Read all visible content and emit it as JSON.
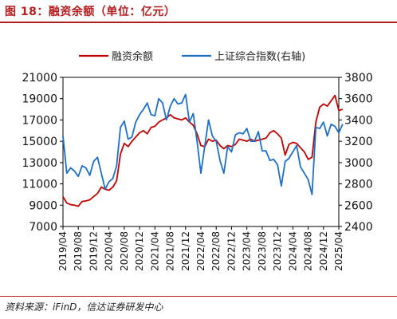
{
  "header": {
    "title": "图 18：融资余额（单位：亿元）"
  },
  "footer": {
    "source": "资料来源：iFinD，信达证券研发中心"
  },
  "colors": {
    "accent": "#b31d1d",
    "series_margin": "#c00000",
    "series_index": "#1f6fc5"
  },
  "chart_data": {
    "type": "line",
    "legend_position": "top",
    "grid": false,
    "x_ticks": [
      "2019/04",
      "2019/08",
      "2019/12",
      "2020/04",
      "2020/08",
      "2020/12",
      "2021/04",
      "2021/08",
      "2021/12",
      "2022/04",
      "2022/08",
      "2022/12",
      "2023/04",
      "2023/08",
      "2023/12",
      "2024/04",
      "2024/08",
      "2024/12",
      "2025/04"
    ],
    "left_axis": {
      "ylim": [
        7000,
        21000
      ],
      "ticks": [
        "7000",
        "9000",
        "11000",
        "13000",
        "15000",
        "17000",
        "19000",
        "21000"
      ]
    },
    "right_axis": {
      "ylim": [
        2400,
        3800
      ],
      "ticks": [
        "2400",
        "2600",
        "2800",
        "3000",
        "3200",
        "3400",
        "3600",
        "3800"
      ]
    },
    "series": [
      {
        "name": "融资余额",
        "axis": "left",
        "points": [
          [
            "2019/04",
            9800
          ],
          [
            "2019/05",
            9200
          ],
          [
            "2019/06",
            9050
          ],
          [
            "2019/07",
            9000
          ],
          [
            "2019/08",
            8900
          ],
          [
            "2019/09",
            9350
          ],
          [
            "2019/10",
            9400
          ],
          [
            "2019/11",
            9500
          ],
          [
            "2019/12",
            9800
          ],
          [
            "2020/01",
            10100
          ],
          [
            "2020/02",
            10700
          ],
          [
            "2020/03",
            10500
          ],
          [
            "2020/04",
            10400
          ],
          [
            "2020/05",
            10700
          ],
          [
            "2020/06",
            11300
          ],
          [
            "2020/07",
            13800
          ],
          [
            "2020/08",
            14800
          ],
          [
            "2020/09",
            14500
          ],
          [
            "2020/10",
            15000
          ],
          [
            "2020/11",
            15400
          ],
          [
            "2020/12",
            15800
          ],
          [
            "2021/01",
            16000
          ],
          [
            "2021/02",
            15700
          ],
          [
            "2021/03",
            16300
          ],
          [
            "2021/04",
            16400
          ],
          [
            "2021/05",
            16800
          ],
          [
            "2021/06",
            17000
          ],
          [
            "2021/07",
            17200
          ],
          [
            "2021/08",
            17500
          ],
          [
            "2021/09",
            17200
          ],
          [
            "2021/10",
            17100
          ],
          [
            "2021/11",
            17000
          ],
          [
            "2021/12",
            17200
          ],
          [
            "2022/01",
            16800
          ],
          [
            "2022/02",
            16500
          ],
          [
            "2022/03",
            15700
          ],
          [
            "2022/04",
            14600
          ],
          [
            "2022/05",
            14500
          ],
          [
            "2022/06",
            15200
          ],
          [
            "2022/07",
            15000
          ],
          [
            "2022/08",
            15100
          ],
          [
            "2022/09",
            14600
          ],
          [
            "2022/10",
            14300
          ],
          [
            "2022/11",
            14600
          ],
          [
            "2022/12",
            14500
          ],
          [
            "2023/01",
            14700
          ],
          [
            "2023/02",
            15200
          ],
          [
            "2023/03",
            15100
          ],
          [
            "2023/04",
            15000
          ],
          [
            "2023/05",
            15200
          ],
          [
            "2023/06",
            15000
          ],
          [
            "2023/07",
            15100
          ],
          [
            "2023/08",
            15200
          ],
          [
            "2023/09",
            15300
          ],
          [
            "2023/10",
            15800
          ],
          [
            "2023/11",
            16000
          ],
          [
            "2023/12",
            15700
          ],
          [
            "2024/01",
            15300
          ],
          [
            "2024/02",
            13700
          ],
          [
            "2024/03",
            14700
          ],
          [
            "2024/04",
            14900
          ],
          [
            "2024/05",
            14800
          ],
          [
            "2024/06",
            14400
          ],
          [
            "2024/07",
            14000
          ],
          [
            "2024/08",
            13300
          ],
          [
            "2024/09",
            13500
          ],
          [
            "2024/10",
            16800
          ],
          [
            "2024/11",
            18200
          ],
          [
            "2024/12",
            18500
          ],
          [
            "2025/01",
            18300
          ],
          [
            "2025/02",
            18800
          ],
          [
            "2025/03",
            19300
          ],
          [
            "2025/04",
            17900
          ],
          [
            "2025/05",
            18000
          ]
        ]
      },
      {
        "name": "上证综合指数(右轴)",
        "axis": "right",
        "points": [
          [
            "2019/04",
            3250
          ],
          [
            "2019/05",
            2900
          ],
          [
            "2019/06",
            2950
          ],
          [
            "2019/07",
            2920
          ],
          [
            "2019/08",
            2870
          ],
          [
            "2019/09",
            2970
          ],
          [
            "2019/10",
            2950
          ],
          [
            "2019/11",
            2880
          ],
          [
            "2019/12",
            3010
          ],
          [
            "2020/01",
            3050
          ],
          [
            "2020/02",
            2900
          ],
          [
            "2020/03",
            2750
          ],
          [
            "2020/04",
            2820
          ],
          [
            "2020/05",
            2850
          ],
          [
            "2020/06",
            2970
          ],
          [
            "2020/07",
            3330
          ],
          [
            "2020/08",
            3390
          ],
          [
            "2020/09",
            3220
          ],
          [
            "2020/10",
            3240
          ],
          [
            "2020/11",
            3380
          ],
          [
            "2020/12",
            3450
          ],
          [
            "2021/01",
            3500
          ],
          [
            "2021/02",
            3560
          ],
          [
            "2021/03",
            3450
          ],
          [
            "2021/04",
            3440
          ],
          [
            "2021/05",
            3600
          ],
          [
            "2021/06",
            3560
          ],
          [
            "2021/07",
            3400
          ],
          [
            "2021/08",
            3530
          ],
          [
            "2021/09",
            3600
          ],
          [
            "2021/10",
            3550
          ],
          [
            "2021/11",
            3560
          ],
          [
            "2021/12",
            3640
          ],
          [
            "2022/01",
            3380
          ],
          [
            "2022/02",
            3460
          ],
          [
            "2022/03",
            3200
          ],
          [
            "2022/04",
            2900
          ],
          [
            "2022/05",
            3150
          ],
          [
            "2022/06",
            3400
          ],
          [
            "2022/07",
            3250
          ],
          [
            "2022/08",
            3200
          ],
          [
            "2022/09",
            3020
          ],
          [
            "2022/10",
            2900
          ],
          [
            "2022/11",
            3150
          ],
          [
            "2022/12",
            3100
          ],
          [
            "2023/01",
            3260
          ],
          [
            "2023/02",
            3280
          ],
          [
            "2023/03",
            3270
          ],
          [
            "2023/04",
            3320
          ],
          [
            "2023/05",
            3200
          ],
          [
            "2023/06",
            3200
          ],
          [
            "2023/07",
            3290
          ],
          [
            "2023/08",
            3110
          ],
          [
            "2023/09",
            3110
          ],
          [
            "2023/10",
            3020
          ],
          [
            "2023/11",
            3030
          ],
          [
            "2023/12",
            2980
          ],
          [
            "2024/01",
            2780
          ],
          [
            "2024/02",
            3010
          ],
          [
            "2024/03",
            3040
          ],
          [
            "2024/04",
            3100
          ],
          [
            "2024/05",
            3160
          ],
          [
            "2024/06",
            2960
          ],
          [
            "2024/07",
            2900
          ],
          [
            "2024/08",
            2840
          ],
          [
            "2024/09",
            2700
          ],
          [
            "2024/10",
            3330
          ],
          [
            "2024/11",
            3320
          ],
          [
            "2024/12",
            3380
          ],
          [
            "2025/01",
            3250
          ],
          [
            "2025/02",
            3360
          ],
          [
            "2025/03",
            3340
          ],
          [
            "2025/04",
            3280
          ],
          [
            "2025/05",
            3360
          ]
        ]
      }
    ]
  }
}
